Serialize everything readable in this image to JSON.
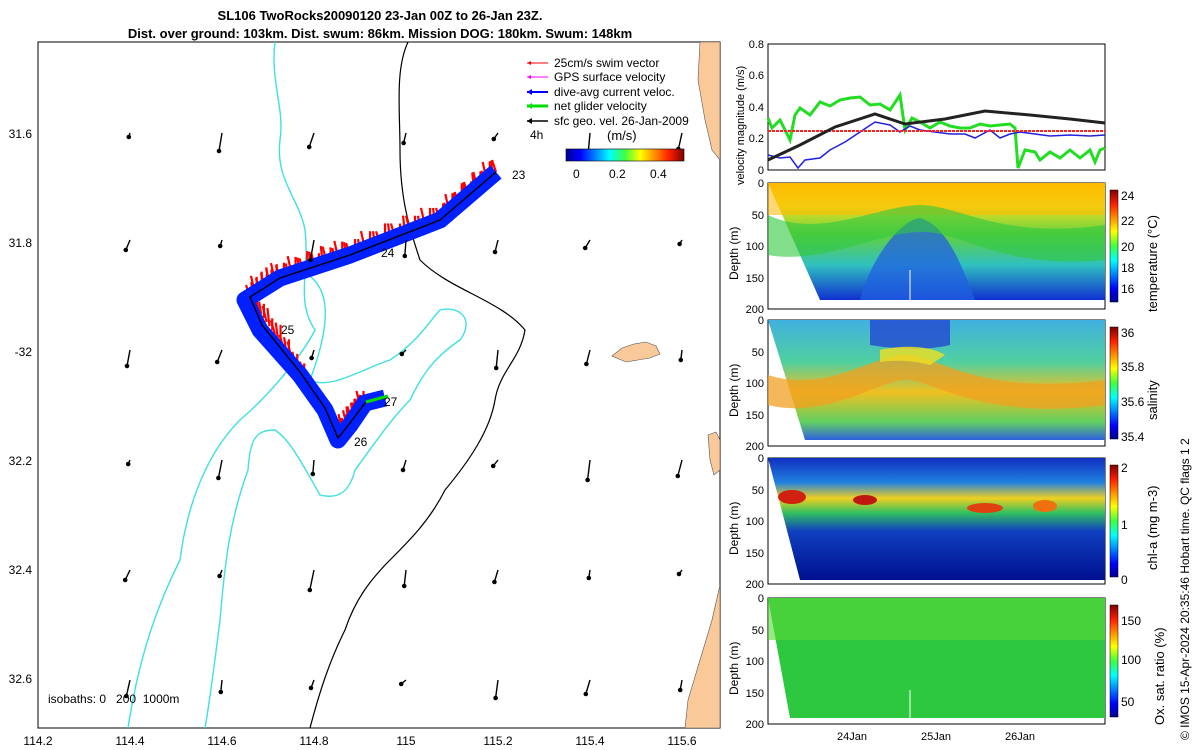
{
  "header": {
    "line1": "SL106 TwoRocks20090120 23-Jan 00Z to 26-Jan 23Z.",
    "line2": "Dist. over ground: 103km. Dist. swum: 86km. Mission DOG: 180km. Swum: 148km"
  },
  "map": {
    "lon_ticks": [
      "114.2",
      "114.4",
      "114.6",
      "114.8",
      "115",
      "115.2",
      "115.4",
      "115.6"
    ],
    "lat_ticks": [
      "31.6",
      "31.8",
      "-32",
      "32.2",
      "32.4",
      "32.6"
    ],
    "day_labels": [
      "23",
      "24",
      "25",
      "26",
      "27"
    ],
    "time_interval_label": "4h",
    "isobath_note": "isobaths: 0   200  1000m",
    "colorbar": {
      "title": "(m/s)",
      "ticks": [
        "0",
        "0.2",
        "0.4"
      ]
    },
    "legend": [
      {
        "label": "25cm/s swim vector",
        "color": "#ff0000"
      },
      {
        "label": "GPS surface velocity",
        "color": "#ff00ff"
      },
      {
        "label": "dive-avg current veloc.",
        "color": "#0000ff"
      },
      {
        "label": "net glider velocity",
        "color": "#00dd00"
      },
      {
        "label": "sfc geo. vel. 26-Jan-2009",
        "color": "#000000"
      }
    ],
    "colors": {
      "land": "#f9c99a",
      "isobath_shallow": "#40e0e0",
      "isobath_deep": "#000000"
    }
  },
  "velocity_panel": {
    "ylabel": "velocity magnitude (m/s)",
    "yticks": [
      "0",
      "0.2",
      "0.4",
      "0.6",
      "0.8"
    ]
  },
  "section_panels": [
    {
      "name": "temperature",
      "ylabel": "Depth (m)",
      "cblabel": "temperature (°C)",
      "cbticks": [
        "16",
        "18",
        "20",
        "22",
        "24"
      ],
      "yticks": [
        "0",
        "50",
        "100",
        "150",
        "200"
      ]
    },
    {
      "name": "salinity",
      "ylabel": "Depth (m)",
      "cblabel": "salinity",
      "cbticks": [
        "35.4",
        "35.6",
        "35.8",
        "36"
      ],
      "yticks": [
        "0",
        "50",
        "100",
        "150",
        "200"
      ]
    },
    {
      "name": "chl-a",
      "ylabel": "Depth (m)",
      "cblabel": "chl-a (mg m-3)",
      "cbticks": [
        "0",
        "1",
        "2"
      ],
      "yticks": [
        "0",
        "50",
        "100",
        "150",
        "200"
      ]
    },
    {
      "name": "oxygen",
      "ylabel": "Depth (m)",
      "cblabel": "Ox. sat. ratio (%)",
      "cbticks": [
        "50",
        "100",
        "150"
      ],
      "yticks": [
        "0",
        "50",
        "100",
        "150",
        "200"
      ]
    }
  ],
  "time_ticks": [
    "24Jan",
    "25Jan",
    "26Jan"
  ],
  "credit": "© IMOS 15-Apr-2024 20:35:46 Hobart time. QC flags 1  2"
}
